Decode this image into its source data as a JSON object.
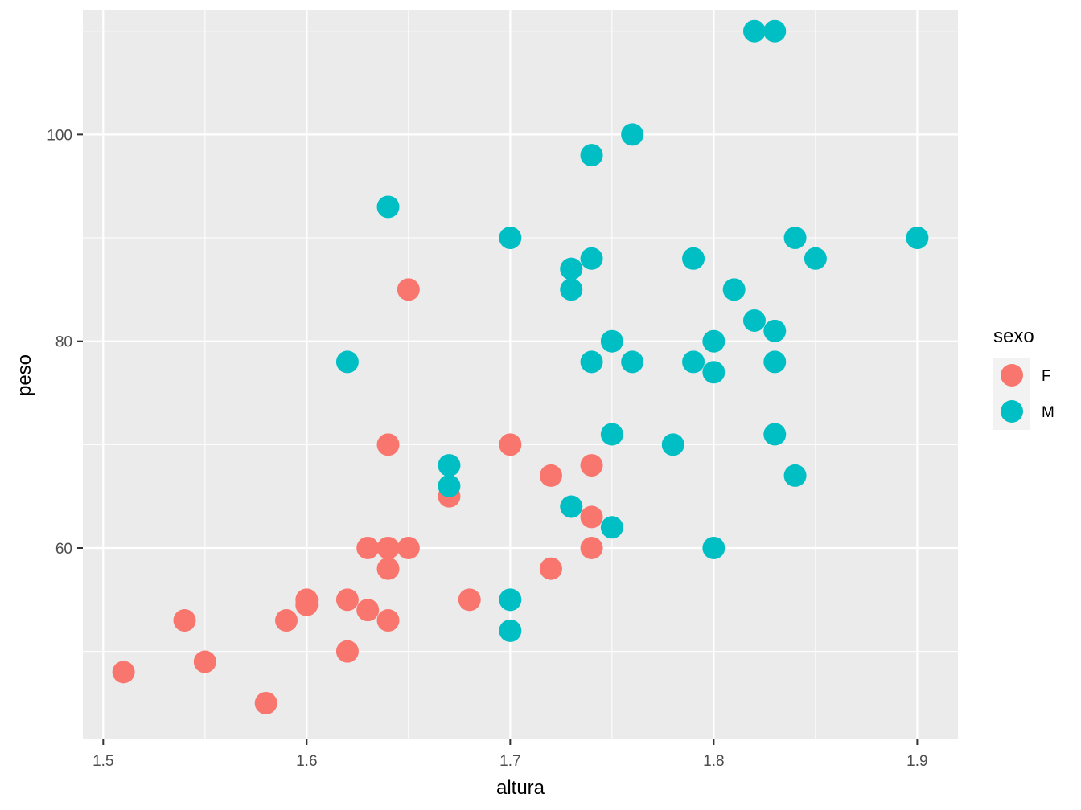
{
  "chart_data": {
    "type": "scatter",
    "title": "",
    "xlabel": "altura",
    "ylabel": "peso",
    "xlim": [
      1.49,
      1.92
    ],
    "ylim": [
      41.5,
      112.0
    ],
    "x_ticks": [
      1.5,
      1.6,
      1.7,
      1.8,
      1.9
    ],
    "x_tick_labels": [
      "1.5",
      "1.6",
      "1.7",
      "1.8",
      "1.9"
    ],
    "y_ticks": [
      60,
      80,
      100
    ],
    "y_tick_labels": [
      "60",
      "80",
      "100"
    ],
    "grid": true,
    "legend": {
      "title": "sexo",
      "placement": "right"
    },
    "series": [
      {
        "name": "F",
        "color": "#F8766D",
        "points": [
          {
            "x": 1.51,
            "y": 48
          },
          {
            "x": 1.54,
            "y": 53
          },
          {
            "x": 1.55,
            "y": 49
          },
          {
            "x": 1.58,
            "y": 45
          },
          {
            "x": 1.59,
            "y": 53
          },
          {
            "x": 1.6,
            "y": 55
          },
          {
            "x": 1.6,
            "y": 54.5
          },
          {
            "x": 1.62,
            "y": 55
          },
          {
            "x": 1.62,
            "y": 50
          },
          {
            "x": 1.63,
            "y": 60
          },
          {
            "x": 1.63,
            "y": 54
          },
          {
            "x": 1.64,
            "y": 70
          },
          {
            "x": 1.64,
            "y": 60
          },
          {
            "x": 1.64,
            "y": 58
          },
          {
            "x": 1.64,
            "y": 53
          },
          {
            "x": 1.65,
            "y": 85
          },
          {
            "x": 1.65,
            "y": 60
          },
          {
            "x": 1.67,
            "y": 65
          },
          {
            "x": 1.68,
            "y": 55
          },
          {
            "x": 1.7,
            "y": 70
          },
          {
            "x": 1.72,
            "y": 67
          },
          {
            "x": 1.72,
            "y": 58
          },
          {
            "x": 1.74,
            "y": 68
          },
          {
            "x": 1.74,
            "y": 63
          },
          {
            "x": 1.74,
            "y": 60
          }
        ]
      },
      {
        "name": "M",
        "color": "#00BFC4",
        "points": [
          {
            "x": 1.62,
            "y": 78
          },
          {
            "x": 1.64,
            "y": 93
          },
          {
            "x": 1.67,
            "y": 68
          },
          {
            "x": 1.67,
            "y": 66
          },
          {
            "x": 1.7,
            "y": 90
          },
          {
            "x": 1.7,
            "y": 55
          },
          {
            "x": 1.7,
            "y": 52
          },
          {
            "x": 1.73,
            "y": 87
          },
          {
            "x": 1.73,
            "y": 85
          },
          {
            "x": 1.73,
            "y": 64
          },
          {
            "x": 1.74,
            "y": 98
          },
          {
            "x": 1.74,
            "y": 88
          },
          {
            "x": 1.74,
            "y": 78
          },
          {
            "x": 1.75,
            "y": 80
          },
          {
            "x": 1.75,
            "y": 71
          },
          {
            "x": 1.75,
            "y": 62
          },
          {
            "x": 1.76,
            "y": 100
          },
          {
            "x": 1.76,
            "y": 78
          },
          {
            "x": 1.78,
            "y": 70
          },
          {
            "x": 1.79,
            "y": 88
          },
          {
            "x": 1.79,
            "y": 78
          },
          {
            "x": 1.8,
            "y": 80
          },
          {
            "x": 1.8,
            "y": 77
          },
          {
            "x": 1.8,
            "y": 60
          },
          {
            "x": 1.81,
            "y": 85
          },
          {
            "x": 1.82,
            "y": 110
          },
          {
            "x": 1.82,
            "y": 82
          },
          {
            "x": 1.83,
            "y": 110
          },
          {
            "x": 1.83,
            "y": 81
          },
          {
            "x": 1.83,
            "y": 78
          },
          {
            "x": 1.83,
            "y": 71
          },
          {
            "x": 1.84,
            "y": 90
          },
          {
            "x": 1.84,
            "y": 67
          },
          {
            "x": 1.85,
            "y": 88
          },
          {
            "x": 1.9,
            "y": 90
          }
        ]
      }
    ]
  }
}
